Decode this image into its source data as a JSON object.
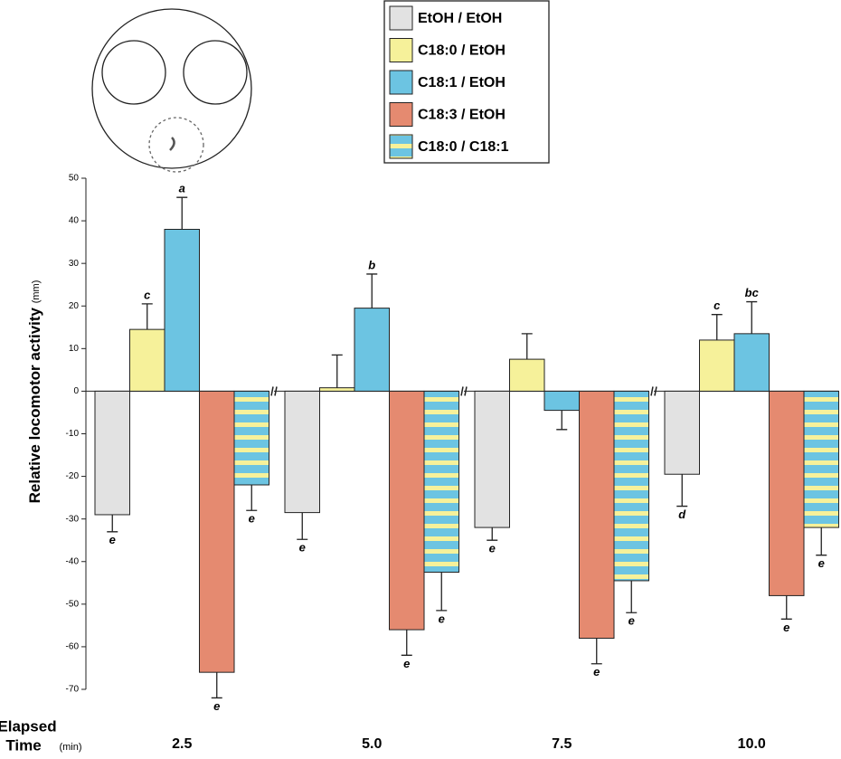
{
  "chart_data": {
    "type": "bar",
    "ylabel": "Relative locomotor activity",
    "ylabel_unit": "(mm)",
    "xlabel_lines": [
      "Elapsed",
      "Time"
    ],
    "xlabel_unit": "(min)",
    "categories": [
      "2.5",
      "5.0",
      "7.5",
      "10.0"
    ],
    "series": [
      {
        "name": "EtOH / EtOH",
        "color": "#e2e2e2",
        "values": [
          -29,
          -28.5,
          -32,
          -19.5
        ],
        "errors": [
          4,
          6.3,
          3,
          7.5
        ],
        "labels": [
          "e",
          "e",
          "e",
          "d"
        ]
      },
      {
        "name": "C18:0 / EtOH",
        "color": "#f6f19a",
        "values": [
          14.5,
          0.8,
          7.5,
          12
        ],
        "errors": [
          6,
          7.7,
          6,
          6
        ],
        "labels": [
          "c",
          null,
          null,
          "c"
        ]
      },
      {
        "name": "C18:1 / EtOH",
        "color": "#6cc4e2",
        "values": [
          38,
          19.5,
          -4.5,
          13.5
        ],
        "errors": [
          7.5,
          8,
          4.5,
          7.5
        ],
        "labels": [
          "a",
          "b",
          null,
          "bc"
        ]
      },
      {
        "name": "C18:3 / EtOH",
        "color": "#e58a70",
        "values": [
          -66,
          -56,
          -58,
          -48
        ],
        "errors": [
          6,
          6,
          6,
          5.5
        ],
        "labels": [
          "e",
          "e",
          "e",
          "e"
        ]
      },
      {
        "name": "C18:0 / C18:1",
        "color": "#6cc4e2",
        "stripe_color": "#f6f19a",
        "values": [
          -22,
          -42.5,
          -44.5,
          -32
        ],
        "errors": [
          6,
          9,
          7.5,
          6.5
        ],
        "labels": [
          "e",
          "e",
          "e",
          "e"
        ]
      }
    ],
    "ylim": [
      -70,
      50
    ],
    "yticks": [
      50,
      40,
      30,
      20,
      10,
      0,
      -10,
      -20,
      -30,
      -40,
      -50,
      -60,
      -70
    ]
  }
}
